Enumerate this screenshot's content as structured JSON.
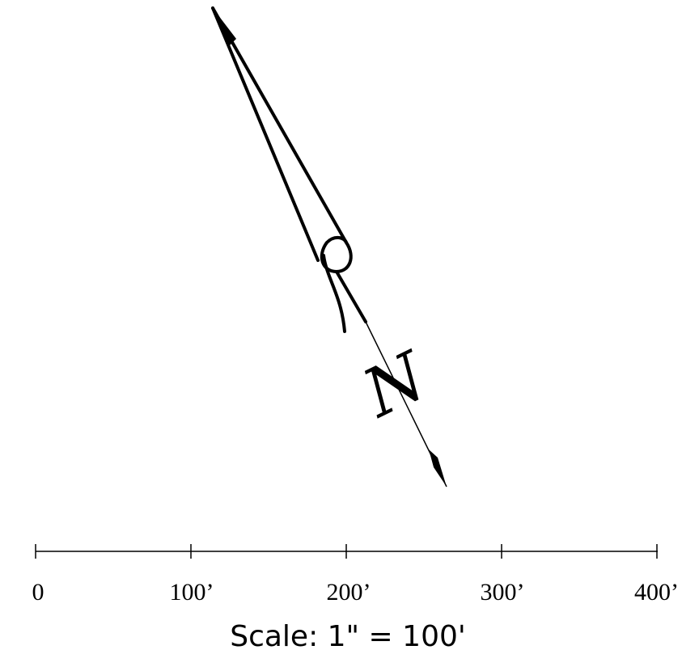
{
  "north_arrow": {
    "letter": "N",
    "icon": "north-arrow-icon"
  },
  "scale_bar": {
    "ticks": [
      "0",
      "100’",
      "200’",
      "300’",
      "400’"
    ],
    "caption": "Scale: 1\" = 100'"
  },
  "colors": {
    "ink": "#000000",
    "background": "#ffffff"
  }
}
